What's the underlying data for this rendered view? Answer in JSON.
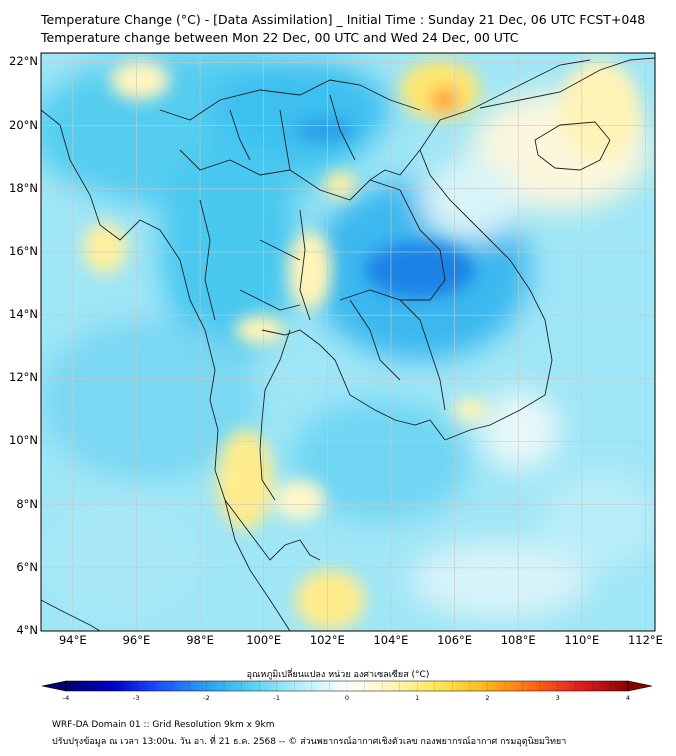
{
  "title_line1": "Temperature Change (°C) - [Data Assimilation] _ Initial Time : Sunday 21 Dec, 06 UTC FCST+048",
  "title_line2": "Temperature change between Mon 22 Dec, 00 UTC and Wed 24 Dec, 00 UTC",
  "lat_labels": [
    "22°N",
    "20°N",
    "18°N",
    "16°N",
    "14°N",
    "12°N",
    "10°N",
    "8°N",
    "6°N",
    "4°N"
  ],
  "lon_labels": [
    "94°E",
    "96°E",
    "98°E",
    "100°E",
    "102°E",
    "104°E",
    "106°E",
    "108°E",
    "110°E",
    "112°E"
  ],
  "colorbar": {
    "label": "อุณหภูมิเปลี่ยนแปลง หน่วย องศาเซลเซียส (°C)",
    "ticks": [
      "-4",
      "-3",
      "-2",
      "-1",
      "0",
      "1",
      "2",
      "3",
      "4"
    ],
    "colors": [
      "#00006e",
      "#0000c8",
      "#1e50ff",
      "#28a0f0",
      "#5ad2f0",
      "#b4f0f8",
      "#ffffff",
      "#fff5b4",
      "#ffe650",
      "#ffb41e",
      "#ff6414",
      "#dc1e1e",
      "#8c0000"
    ]
  },
  "footer_line1": "WRF-DA Domain 01 :: Grid Resolution 9km x 9km",
  "footer_line2": "ปรับปรุงข้อมูล ณ เวลา 13:00น. วัน อา. ที่ 21 ธ.ค. 2568 -- © ส่วนพยากรณ์อากาศเชิงตัวเลข กองพยากรณ์อากาศ กรมอุตุนิยมวิทยา"
}
